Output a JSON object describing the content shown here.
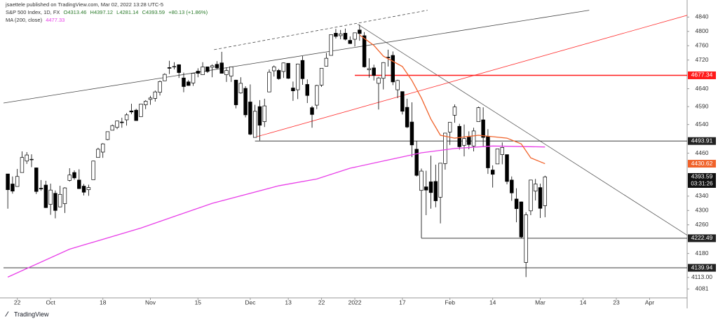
{
  "header": {
    "publisher": "jsaettele published on TradingView.com, Mar 02, 2022 13:28 UTC-5"
  },
  "chart_data": {
    "type": "candlestick",
    "title": "S&P 500 Index, 1D, FX",
    "ohlc_labels": [
      "O4313.46",
      "H4397.12",
      "L4281.14",
      "C4393.59",
      "+80.13 (+1.86%)"
    ],
    "open": [
      4402,
      4374,
      4367,
      4406,
      4438,
      4442,
      4419,
      4362,
      4371,
      4317,
      4348,
      4310,
      4319,
      4384,
      4406,
      4385,
      4368,
      4358,
      4386,
      4448,
      4463,
      4498,
      4524,
      4532,
      4547,
      4553,
      4578,
      4580,
      4562,
      4595,
      4610,
      4613,
      4630,
      4662,
      4699,
      4701,
      4707,
      4670,
      4659,
      4656,
      4689,
      4679,
      4701,
      4700,
      4708,
      4712,
      4679,
      4675,
      4664,
      4628,
      4641,
      4603,
      4504,
      4590,
      4548,
      4631,
      4690,
      4691,
      4688,
      4711,
      4642,
      4637,
      4719,
      4652,
      4587,
      4594,
      4650,
      4703,
      4733,
      4795,
      4788,
      4795,
      4775,
      4778,
      4804,
      4788,
      4693,
      4698,
      4655,
      4669,
      4728,
      4733,
      4637,
      4632,
      4588,
      4547,
      4471,
      4356,
      4366,
      4380,
      4381,
      4337,
      4431,
      4519,
      4566,
      4535,
      4482,
      4505,
      4480,
      4548,
      4553,
      4507,
      4413,
      4430,
      4456,
      4456,
      4385,
      4332,
      4324,
      4155,
      4299,
      4354,
      4364,
      4313.46
    ],
    "high": [
      4402,
      4395,
      4416,
      4465,
      4463,
      4457,
      4420,
      4385,
      4383,
      4375,
      4356,
      4369,
      4365,
      4418,
      4412,
      4415,
      4374,
      4372,
      4439,
      4475,
      4488,
      4520,
      4540,
      4550,
      4559,
      4572,
      4598,
      4584,
      4597,
      4608,
      4620,
      4635,
      4663,
      4683,
      4718,
      4714,
      4708,
      4685,
      4664,
      4684,
      4697,
      4714,
      4701,
      4708,
      4717,
      4743,
      4699,
      4702,
      4665,
      4672,
      4647,
      4652,
      4595,
      4608,
      4612,
      4694,
      4705,
      4695,
      4713,
      4711,
      4660,
      4710,
      4731,
      4666,
      4592,
      4651,
      4697,
      4740,
      4791,
      4807,
      4804,
      4808,
      4786,
      4796,
      4819,
      4798,
      4725,
      4707,
      4673,
      4714,
      4749,
      4744,
      4665,
      4632,
      4612,
      4602,
      4494,
      4417,
      4411,
      4453,
      4428,
      4432,
      4516,
      4546,
      4596,
      4542,
      4540,
      4521,
      4531,
      4590,
      4588,
      4527,
      4426,
      4472,
      4490,
      4456,
      4395,
      4362,
      4325,
      4295,
      4385,
      4388,
      4375,
      4397.12
    ],
    "low": [
      4305,
      4347,
      4367,
      4406,
      4430,
      4421,
      4346,
      4355,
      4307,
      4288,
      4278,
      4309,
      4293,
      4381,
      4386,
      4360,
      4342,
      4341,
      4386,
      4448,
      4447,
      4496,
      4524,
      4527,
      4531,
      4537,
      4569,
      4551,
      4562,
      4583,
      4595,
      4604,
      4621,
      4662,
      4681,
      4694,
      4670,
      4630,
      4648,
      4648,
      4672,
      4679,
      4684,
      4672,
      4694,
      4683,
      4659,
      4659,
      4585,
      4626,
      4560,
      4510,
      4504,
      4495,
      4533,
      4631,
      4674,
      4665,
      4670,
      4667,
      4606,
      4611,
      4651,
      4600,
      4531,
      4583,
      4645,
      4703,
      4733,
      4780,
      4778,
      4775,
      4765,
      4758,
      4774,
      4699,
      4671,
      4663,
      4582,
      4638,
      4702,
      4650,
      4614,
      4568,
      4530,
      4449,
      4395,
      4223,
      4287,
      4305,
      4309,
      4264,
      4414,
      4483,
      4545,
      4470,
      4451,
      4471,
      4465,
      4548,
      4478,
      4402,
      4364,
      4430,
      4429,
      4373,
      4327,
      4267,
      4223,
      4114,
      4287,
      4328,
      4279,
      4281.14
    ],
    "close": [
      4358,
      4354,
      4395,
      4448,
      4455,
      4443,
      4353,
      4360,
      4308,
      4357,
      4300,
      4345,
      4363,
      4399,
      4391,
      4361,
      4351,
      4364,
      4438,
      4471,
      4486,
      4520,
      4537,
      4550,
      4545,
      4567,
      4575,
      4551,
      4597,
      4605,
      4614,
      4631,
      4660,
      4680,
      4697,
      4702,
      4685,
      4646,
      4649,
      4683,
      4683,
      4701,
      4688,
      4704,
      4698,
      4683,
      4691,
      4701,
      4595,
      4655,
      4567,
      4513,
      4577,
      4538,
      4592,
      4686,
      4701,
      4668,
      4712,
      4669,
      4634,
      4709,
      4668,
      4621,
      4568,
      4649,
      4697,
      4725,
      4791,
      4786,
      4793,
      4778,
      4766,
      4796,
      4794,
      4701,
      4696,
      4677,
      4670,
      4713,
      4726,
      4659,
      4663,
      4577,
      4533,
      4483,
      4398,
      4410,
      4357,
      4350,
      4327,
      4432,
      4516,
      4546,
      4589,
      4478,
      4501,
      4484,
      4522,
      4587,
      4504,
      4419,
      4401,
      4472,
      4476,
      4381,
      4349,
      4305,
      4226,
      4288,
      4385,
      4374,
      4306,
      4393.59
    ],
    "up_color": "#ffffff",
    "down_color": "#000000",
    "last_countdown": "03:31:26",
    "indicators": [
      {
        "name": "MA (200, close)",
        "value_label": "4477.33",
        "color": "#e83ee8",
        "x": [
          0,
          13,
          28,
          43,
          57,
          65,
          72,
          80,
          87,
          94,
          102,
          113
        ],
        "values": [
          4114,
          4192,
          4251,
          4320,
          4369,
          4388,
          4418,
          4441,
          4461,
          4473,
          4480,
          4477.33
        ]
      },
      {
        "color": "#f0622a",
        "x": [
          74,
          77,
          79,
          83,
          85,
          87,
          89,
          91,
          94,
          99,
          102,
          105,
          108,
          110,
          113
        ],
        "values": [
          4790,
          4761,
          4731,
          4702,
          4663,
          4614,
          4555,
          4510,
          4502,
          4510,
          4506,
          4502,
          4486,
          4447,
          4430.62
        ]
      }
    ],
    "levels": [
      {
        "value": 4677.34,
        "color": "#ff1a1a",
        "start": 73
      },
      {
        "value": 4493.91,
        "color": "#222222",
        "start": 52
      },
      {
        "value": 4222.49,
        "color": "#222222",
        "start": 87
      },
      {
        "value": 4139.94,
        "color": "#222222"
      }
    ],
    "trendlines": [
      {
        "x": [
          -0.9,
          122.3
        ],
        "y": [
          4600,
          4859
        ],
        "color": "#444444",
        "dash": false
      },
      {
        "x": [
          43.4,
          88.3
        ],
        "y": [
          4749,
          4859
        ],
        "color": "#444444",
        "dash": true
      },
      {
        "x": [
          52.4,
          142.9
        ],
        "y": [
          4506,
          4845
        ],
        "color": "#ff3030",
        "dash": false
      },
      {
        "x": [
          73.6,
          142.9
        ],
        "y": [
          4820,
          4231
        ],
        "color": "#555555",
        "dash": false
      }
    ],
    "xlim": [
      -0.9,
      142.9
    ],
    "ylim": [
      4056,
      4872
    ],
    "yticks": [
      4840,
      4800,
      4760,
      4720,
      4640,
      4590,
      4540,
      4460,
      4340,
      4300,
      4260,
      4180,
      {
        "value": 4113,
        "label": "4113.00"
      },
      4081
    ],
    "xticks": [
      {
        "value": 2,
        "label": "22"
      },
      {
        "value": 9,
        "label": "Oct"
      },
      {
        "value": 20,
        "label": "18"
      },
      {
        "value": 30,
        "label": "Nov"
      },
      {
        "value": 40,
        "label": "15"
      },
      {
        "value": 51,
        "label": "Dec"
      },
      {
        "value": 59,
        "label": "13"
      },
      {
        "value": 66,
        "label": "22"
      },
      {
        "value": 73,
        "label": "2022"
      },
      {
        "value": 83,
        "label": "17"
      },
      {
        "value": 93,
        "label": "Feb"
      },
      {
        "value": 102,
        "label": "14"
      },
      {
        "value": 112,
        "label": "Mar"
      },
      {
        "value": 121,
        "label": "14"
      },
      {
        "value": 128,
        "label": "23"
      },
      {
        "value": 135,
        "label": "Apr"
      }
    ]
  },
  "footer": {
    "brand": "TradingView"
  }
}
